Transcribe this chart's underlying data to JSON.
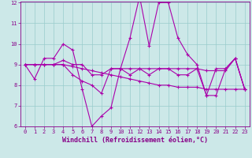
{
  "title": "",
  "xlabel": "Windchill (Refroidissement éolien,°C)",
  "ylabel": "",
  "bg_color": "#cce8e8",
  "line_color": "#aa00aa",
  "grid_color": "#99cccc",
  "ylim": [
    6,
    12
  ],
  "xlim": [
    -0.5,
    23.5
  ],
  "yticks": [
    6,
    7,
    8,
    9,
    10,
    11,
    12
  ],
  "xticks": [
    0,
    1,
    2,
    3,
    4,
    5,
    6,
    7,
    8,
    9,
    10,
    11,
    12,
    13,
    14,
    15,
    16,
    17,
    18,
    19,
    20,
    21,
    22,
    23
  ],
  "series": [
    [
      9.0,
      8.3,
      9.3,
      9.3,
      10.0,
      9.7,
      7.8,
      6.0,
      6.5,
      6.9,
      8.8,
      10.3,
      12.3,
      9.9,
      12.0,
      12.0,
      10.3,
      9.5,
      9.0,
      7.5,
      7.5,
      8.8,
      9.3,
      7.8
    ],
    [
      9.0,
      9.0,
      9.0,
      9.0,
      9.2,
      9.0,
      9.0,
      8.5,
      8.5,
      8.8,
      8.8,
      8.8,
      8.8,
      8.8,
      8.8,
      8.8,
      8.8,
      8.8,
      8.8,
      8.7,
      8.7,
      8.7,
      9.3,
      7.8
    ],
    [
      9.0,
      9.0,
      9.0,
      9.0,
      9.0,
      8.9,
      8.8,
      8.7,
      8.6,
      8.5,
      8.4,
      8.3,
      8.2,
      8.1,
      8.0,
      8.0,
      7.9,
      7.9,
      7.9,
      7.8,
      7.8,
      7.8,
      7.8,
      7.8
    ],
    [
      9.0,
      9.0,
      9.0,
      9.0,
      9.0,
      8.5,
      8.2,
      8.0,
      7.6,
      8.8,
      8.8,
      8.5,
      8.8,
      8.5,
      8.8,
      8.8,
      8.5,
      8.5,
      8.8,
      7.5,
      8.8,
      8.8,
      9.3,
      7.8
    ]
  ],
  "marker": "+",
  "markersize": 3,
  "linewidth": 0.8,
  "tick_fontsize": 5,
  "xlabel_fontsize": 6,
  "axis_color": "#880088"
}
